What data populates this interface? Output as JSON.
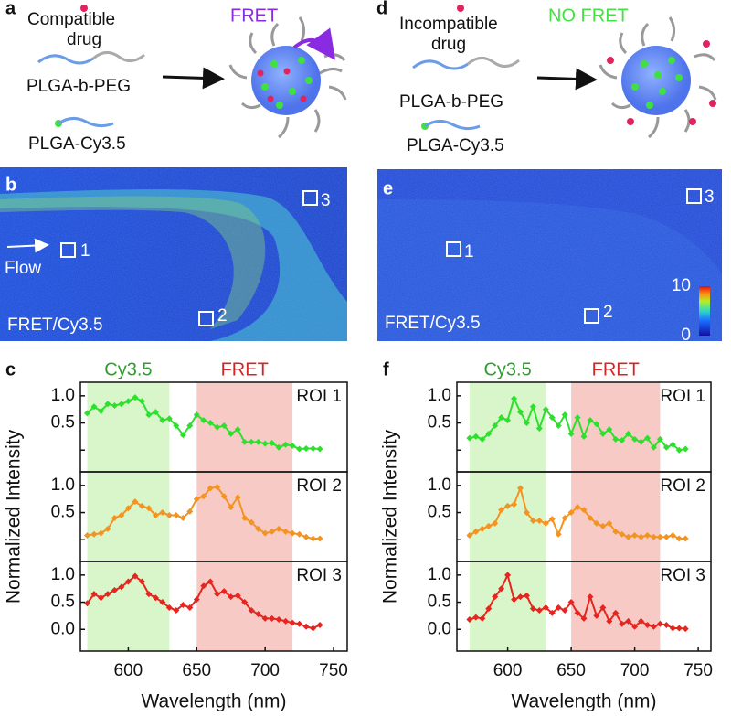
{
  "panels": {
    "a": {
      "letter": "a",
      "drug": [
        "Compatible",
        "drug"
      ],
      "polymer": "PLGA-b-PEG",
      "dye": "PLGA-Cy3.5",
      "result": "FRET"
    },
    "d": {
      "letter": "d",
      "drug": [
        "Incompatible",
        "drug"
      ],
      "polymer": "PLGA-b-PEG",
      "dye": "PLGA-Cy3.5",
      "result": "NO FRET"
    },
    "b": {
      "letter": "b",
      "rois": [
        "1",
        "2",
        "3"
      ],
      "flow": "Flow",
      "caption": "FRET/Cy3.5"
    },
    "e": {
      "letter": "e",
      "rois": [
        "1",
        "2",
        "3"
      ],
      "caption": "FRET/Cy3.5",
      "colorbar_ticks": [
        0,
        10
      ]
    }
  },
  "chart_data": [
    {
      "type": "line",
      "panel": "c",
      "xlabel": "Wavelength (nm)",
      "ylabel": "Normalized Intensity",
      "bands": [
        {
          "label": "Cy3.5",
          "range": [
            570,
            630
          ],
          "color": "#d8f6c9",
          "label_color": "#2e9e2e"
        },
        {
          "label": "FRET",
          "range": [
            650,
            720
          ],
          "color": "#f8cac6",
          "label_color": "#d42424"
        }
      ],
      "x": [
        570,
        575,
        580,
        585,
        590,
        595,
        600,
        605,
        610,
        615,
        620,
        625,
        630,
        635,
        640,
        645,
        650,
        655,
        660,
        665,
        670,
        675,
        680,
        685,
        690,
        695,
        700,
        705,
        710,
        715,
        720,
        725,
        730,
        735,
        740
      ],
      "xlim": [
        565,
        760
      ],
      "xticks": [
        600,
        650,
        700,
        750
      ],
      "ylim": [
        -0.4,
        1.25
      ],
      "yticks": [
        {
          "value": 0,
          "label": "0.0"
        },
        {
          "value": 0.5,
          "label": "0.5"
        },
        {
          "value": 1,
          "label": "1.0"
        }
      ],
      "series": [
        {
          "name": "ROI 1",
          "color": "#2ee02e",
          "values": [
            0.68,
            0.8,
            0.72,
            0.85,
            0.82,
            0.85,
            0.9,
            0.97,
            0.9,
            0.65,
            0.7,
            0.55,
            0.58,
            0.45,
            0.28,
            0.45,
            0.65,
            0.55,
            0.5,
            0.42,
            0.45,
            0.3,
            0.38,
            0.15,
            0.15,
            0.15,
            0.12,
            0.13,
            0.05,
            0.1,
            0.08,
            0.02,
            0.03,
            0.03,
            0.02
          ]
        },
        {
          "name": "ROI 2",
          "color": "#f39321",
          "values": [
            0.08,
            0.1,
            0.12,
            0.2,
            0.4,
            0.45,
            0.58,
            0.7,
            0.62,
            0.58,
            0.45,
            0.5,
            0.45,
            0.45,
            0.4,
            0.52,
            0.75,
            0.8,
            0.95,
            0.97,
            0.8,
            0.6,
            0.78,
            0.4,
            0.32,
            0.2,
            0.12,
            0.15,
            0.2,
            0.15,
            0.12,
            0.1,
            0.05,
            0.02,
            0.02
          ]
        },
        {
          "name": "ROI 3",
          "color": "#e5251f",
          "values": [
            0.48,
            0.65,
            0.58,
            0.65,
            0.72,
            0.78,
            0.88,
            0.98,
            0.88,
            0.65,
            0.58,
            0.5,
            0.4,
            0.35,
            0.45,
            0.4,
            0.55,
            0.8,
            0.88,
            0.65,
            0.7,
            0.6,
            0.62,
            0.5,
            0.35,
            0.28,
            0.2,
            0.2,
            0.18,
            0.15,
            0.12,
            0.1,
            0.05,
            0.02,
            0.08
          ]
        }
      ]
    },
    {
      "type": "line",
      "panel": "f",
      "xlabel": "Wavelength (nm)",
      "ylabel": "Normalized Intensity",
      "bands": [
        {
          "label": "Cy3.5",
          "range": [
            570,
            630
          ],
          "color": "#d8f6c9",
          "label_color": "#2e9e2e"
        },
        {
          "label": "FRET",
          "range": [
            650,
            720
          ],
          "color": "#f8cac6",
          "label_color": "#d42424"
        }
      ],
      "x": [
        570,
        575,
        580,
        585,
        590,
        595,
        600,
        605,
        610,
        615,
        620,
        625,
        630,
        635,
        640,
        645,
        650,
        655,
        660,
        665,
        670,
        675,
        680,
        685,
        690,
        695,
        700,
        705,
        710,
        715,
        720,
        725,
        730,
        735,
        740
      ],
      "xlim": [
        560,
        760
      ],
      "xticks": [
        600,
        650,
        700,
        750
      ],
      "ylim": [
        -0.4,
        1.25
      ],
      "yticks": [
        {
          "value": 0,
          "label": "0.0"
        },
        {
          "value": 0.5,
          "label": "0.5"
        },
        {
          "value": 1,
          "label": "1.0"
        }
      ],
      "series": [
        {
          "name": "ROI 1",
          "color": "#2ee02e",
          "values": [
            0.22,
            0.25,
            0.2,
            0.3,
            0.45,
            0.6,
            0.55,
            0.95,
            0.7,
            0.5,
            0.8,
            0.4,
            0.75,
            0.6,
            0.45,
            0.65,
            0.3,
            0.6,
            0.25,
            0.55,
            0.48,
            0.3,
            0.38,
            0.2,
            0.18,
            0.3,
            0.2,
            0.15,
            0.22,
            0.05,
            0.2,
            0.05,
            0.1,
            0.0,
            0.02
          ]
        },
        {
          "name": "ROI 2",
          "color": "#f39321",
          "values": [
            0.08,
            0.15,
            0.2,
            0.25,
            0.3,
            0.55,
            0.62,
            0.65,
            0.95,
            0.5,
            0.35,
            0.35,
            0.3,
            0.38,
            0.1,
            0.4,
            0.5,
            0.6,
            0.55,
            0.4,
            0.3,
            0.25,
            0.3,
            0.15,
            0.1,
            0.05,
            0.08,
            0.05,
            0.08,
            0.05,
            0.05,
            0.05,
            0.08,
            0.02,
            0.02
          ]
        },
        {
          "name": "ROI 3",
          "color": "#e5251f",
          "values": [
            0.18,
            0.22,
            0.2,
            0.38,
            0.6,
            0.75,
            1.0,
            0.55,
            0.6,
            0.62,
            0.38,
            0.35,
            0.4,
            0.3,
            0.4,
            0.35,
            0.5,
            0.3,
            0.2,
            0.6,
            0.25,
            0.4,
            0.15,
            0.3,
            0.1,
            0.15,
            0.05,
            0.15,
            0.08,
            0.05,
            0.1,
            0.08,
            0.02,
            0.02,
            0.01
          ]
        }
      ]
    }
  ]
}
